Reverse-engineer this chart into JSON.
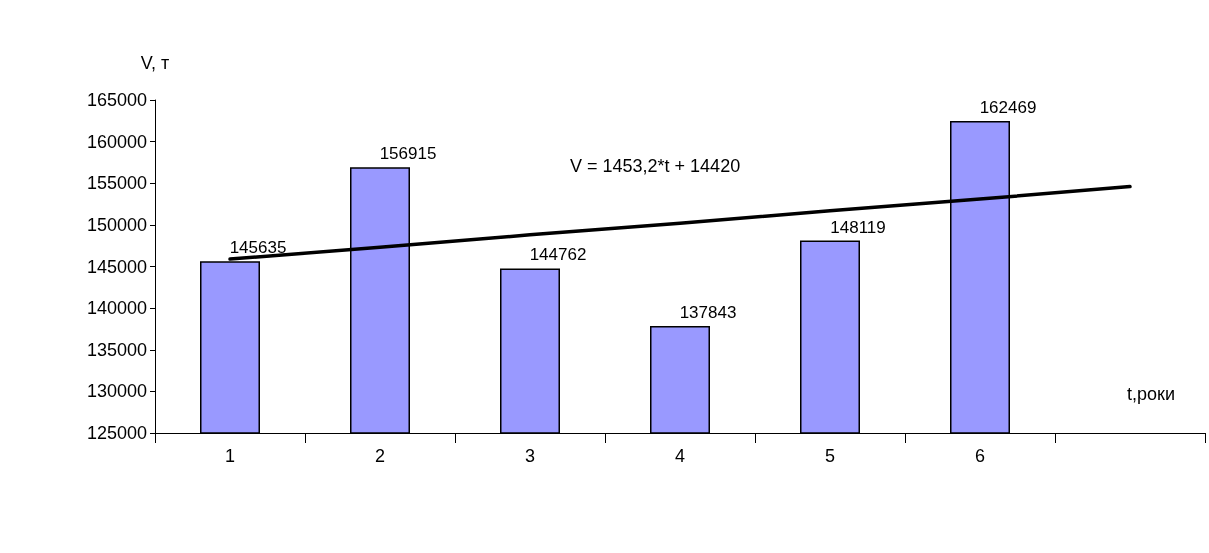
{
  "chart_data": {
    "type": "bar",
    "xlabel": "t,роки",
    "ylabel": "V, т",
    "categories": [
      "1",
      "2",
      "3",
      "4",
      "5",
      "6",
      null
    ],
    "series": [
      {
        "color": "#9999ff",
        "values": [
          145635,
          156915,
          144762,
          137843,
          148119,
          162469,
          null
        ],
        "value_labels": [
          "145635",
          "156915",
          "144762",
          "137843",
          "148119",
          "162469",
          null
        ]
      },
      {
        "type": "line",
        "color": "#000000",
        "values": [
          145900,
          147300,
          148800,
          150200,
          151700,
          153100,
          154600
        ]
      }
    ],
    "annotations": [
      "V = 1453,2*t + 14420"
    ],
    "ylim": [
      125000,
      165000
    ],
    "yticks": [
      125000,
      130000,
      135000,
      140000,
      145000,
      150000,
      155000,
      160000,
      165000
    ],
    "grid": false,
    "marker": "none",
    "line_style": "solid"
  }
}
